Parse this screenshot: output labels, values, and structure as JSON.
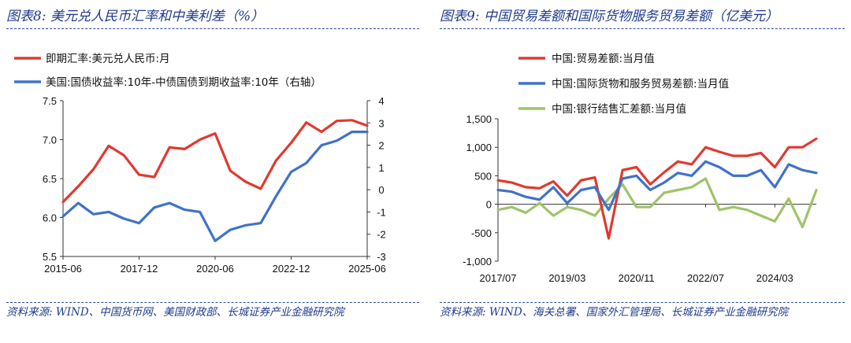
{
  "left": {
    "title": "图表8:  美元兑人民币汇率和中美利差（%）",
    "source": "资料来源:  WIND、中国货币网、美国财政部、长城证券产业金融研究院",
    "chart_data": {
      "type": "line",
      "x": [
        "2015-06",
        "2015-12",
        "2016-06",
        "2016-12",
        "2017-06",
        "2017-12",
        "2018-06",
        "2018-12",
        "2019-06",
        "2019-12",
        "2020-06",
        "2020-12",
        "2021-06",
        "2021-12",
        "2022-06",
        "2022-12",
        "2023-06",
        "2023-12",
        "2024-06",
        "2024-12",
        "2025-06"
      ],
      "x_ticks": [
        "2015-06",
        "2017-12",
        "2020-06",
        "2022-12",
        "2025-06"
      ],
      "series": [
        {
          "name": "即期汇率:美元兑人民币:月",
          "axis": "left",
          "color": "#e03a2f",
          "values": [
            6.2,
            6.4,
            6.62,
            6.92,
            6.8,
            6.55,
            6.52,
            6.9,
            6.88,
            7.0,
            7.08,
            6.6,
            6.46,
            6.37,
            6.73,
            6.96,
            7.22,
            7.1,
            7.24,
            7.25,
            7.18
          ]
        },
        {
          "name": "美国:国债收益率:10年-中债国债到期收益率:10年（右轴）",
          "axis": "right",
          "color": "#3f72c8",
          "values": [
            -1.2,
            -0.6,
            -1.1,
            -1.0,
            -1.3,
            -1.5,
            -0.8,
            -0.6,
            -0.9,
            -1.0,
            -2.3,
            -1.8,
            -1.6,
            -1.5,
            -0.3,
            0.8,
            1.2,
            2.0,
            2.2,
            2.6,
            2.6
          ]
        }
      ],
      "ylim_left": [
        5.5,
        7.5
      ],
      "yticks_left": [
        "5.5",
        "6.0",
        "6.5",
        "7.0",
        "7.5"
      ],
      "ylim_right": [
        -3,
        4
      ],
      "yticks_right": [
        "-3",
        "-2",
        "-1",
        "0",
        "1",
        "2",
        "3",
        "4"
      ]
    }
  },
  "right": {
    "title": "图表9:  中国贸易差额和国际货物服务贸易差额（亿美元）",
    "source": "资料来源:  WIND、海关总署、国家外汇管理局、长城证券产业金融研究院",
    "chart_data": {
      "type": "line",
      "x": [
        "2017/07",
        "2017/11",
        "2018/03",
        "2018/07",
        "2018/11",
        "2019/03",
        "2019/07",
        "2019/11",
        "2020/03",
        "2020/07",
        "2020/11",
        "2021/03",
        "2021/07",
        "2021/11",
        "2022/03",
        "2022/07",
        "2022/11",
        "2023/03",
        "2023/07",
        "2023/11",
        "2024/03",
        "2024/07",
        "2024/11",
        "2025/03"
      ],
      "x_ticks": [
        "2017/07",
        "2019/03",
        "2020/11",
        "2022/07",
        "2024/03"
      ],
      "series": [
        {
          "name": "中国:贸易差额:当月值",
          "color": "#e03a2f",
          "values": [
            420,
            380,
            300,
            280,
            400,
            150,
            420,
            470,
            -600,
            600,
            650,
            350,
            560,
            750,
            700,
            1000,
            920,
            850,
            850,
            900,
            650,
            1000,
            1000,
            1150
          ]
        },
        {
          "name": "中国:国际货物和服务贸易差额:当月值",
          "color": "#3f72c8",
          "values": [
            250,
            220,
            130,
            80,
            300,
            20,
            250,
            300,
            -100,
            450,
            500,
            250,
            380,
            550,
            500,
            750,
            650,
            500,
            500,
            600,
            300,
            700,
            600,
            550
          ]
        },
        {
          "name": "中国:银行结售汇差额:当月值",
          "color": "#9ec46a",
          "values": [
            -100,
            -50,
            -150,
            20,
            -200,
            -50,
            -100,
            -200,
            100,
            350,
            -50,
            -50,
            200,
            250,
            300,
            450,
            -100,
            -50,
            -100,
            -200,
            -300,
            100,
            -400,
            250
          ]
        }
      ],
      "ylim": [
        -1000,
        1500
      ],
      "yticks": [
        "-1,000",
        "-500",
        "0",
        "500",
        "1,000",
        "1,500"
      ]
    }
  }
}
